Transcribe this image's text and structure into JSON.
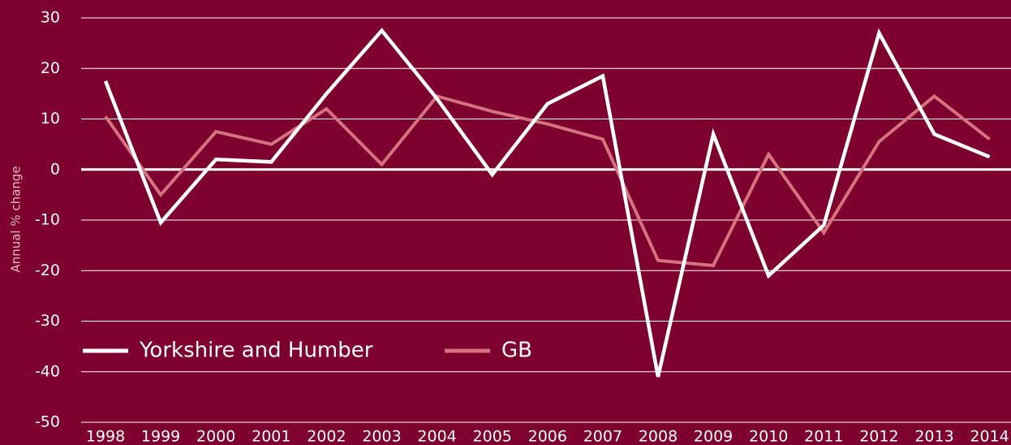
{
  "chart_data": {
    "type": "line",
    "y_label": "Annual % change",
    "categories": [
      "1998",
      "1999",
      "2000",
      "2001",
      "2002",
      "2003",
      "2004",
      "2005",
      "2006",
      "2007",
      "2008",
      "2009",
      "2010",
      "2011",
      "2012",
      "2013",
      "2014"
    ],
    "series": [
      {
        "name": "Yorkshire and Humber",
        "color": "#ffffff",
        "values": [
          17.5,
          -10.5,
          2,
          1.5,
          15,
          27.5,
          14,
          -1,
          13,
          18.5,
          -41,
          7,
          -21,
          -11,
          27,
          7,
          2.5
        ]
      },
      {
        "name": "GB",
        "color": "#d4737e",
        "values": [
          10.5,
          -5,
          7.5,
          5,
          12,
          1,
          14.5,
          11.5,
          9,
          6,
          -18,
          -19,
          3,
          -12.5,
          5.5,
          14.5,
          6
        ]
      }
    ],
    "ylim": [
      -50,
      30
    ],
    "yticks": [
      -50,
      -40,
      -30,
      -20,
      -10,
      0,
      10,
      20,
      30
    ],
    "grid": true,
    "legend": "bottom-left"
  }
}
